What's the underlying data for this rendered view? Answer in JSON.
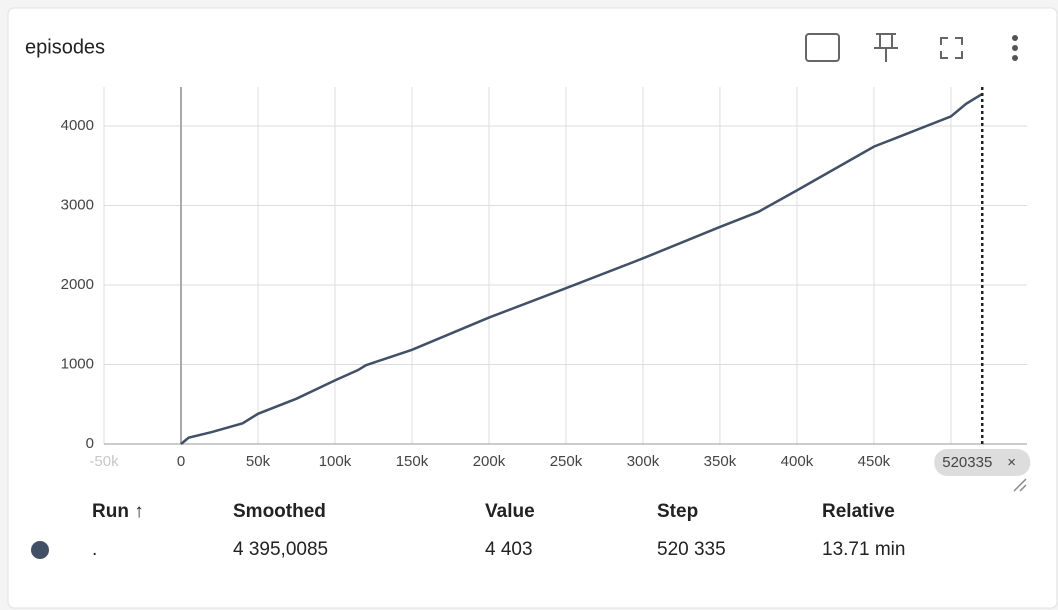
{
  "card": {
    "title": "episodes"
  },
  "chart_data": {
    "type": "line",
    "x": [
      0,
      5000,
      20000,
      40000,
      50000,
      75000,
      100000,
      115000,
      120000,
      150000,
      200000,
      250000,
      300000,
      350000,
      375000,
      400000,
      450000,
      500000,
      510000,
      520335
    ],
    "series": [
      {
        "color": "#425066",
        "values": [
          0,
          80,
          150,
          260,
          380,
          570,
          800,
          930,
          990,
          1185,
          1590,
          1960,
          2335,
          2730,
          2920,
          3190,
          3740,
          4120,
          4280,
          4403
        ]
      }
    ],
    "xlim": [
      -50000,
      549400
    ],
    "ylim": [
      0,
      4490
    ],
    "xticks": [
      {
        "value": -50000,
        "label": "-50k"
      },
      0,
      {
        "value": 50000,
        "label": "50k"
      },
      {
        "value": 100000,
        "label": "100k"
      },
      {
        "value": 150000,
        "label": "150k"
      },
      {
        "value": 200000,
        "label": "200k"
      },
      {
        "value": 250000,
        "label": "250k"
      },
      {
        "value": 300000,
        "label": "300k"
      },
      {
        "value": 350000,
        "label": "350k"
      },
      {
        "value": 400000,
        "label": "400k"
      },
      {
        "value": 450000,
        "label": "450k"
      },
      {
        "value": 500000,
        "label": "500k"
      }
    ],
    "yticks": [
      0,
      1000,
      2000,
      3000,
      4000
    ],
    "grid": true,
    "cursor_step": 520335
  },
  "table": {
    "headers": [
      "Run ↑",
      "Smoothed",
      "Value",
      "Step",
      "Relative"
    ],
    "rows": [
      [
        ".",
        "4 395,0085",
        "4 403",
        "520 335",
        "13.71 min"
      ]
    ]
  }
}
